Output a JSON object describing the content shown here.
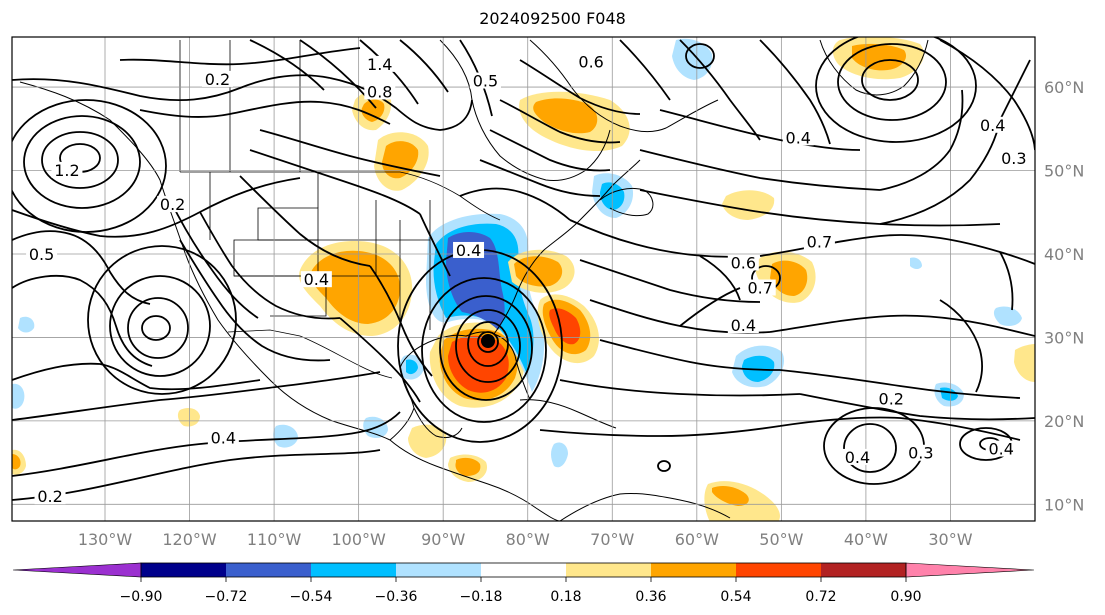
{
  "title": "2024092500 F048",
  "map": {
    "projection": "Cylindrical",
    "lon_range": [
      -141,
      -20
    ],
    "lat_range": [
      8,
      66
    ],
    "gridlines": true,
    "lon_ticks": [
      {
        "lon": -130,
        "label": "130°W"
      },
      {
        "lon": -120,
        "label": "120°W"
      },
      {
        "lon": -110,
        "label": "110°W"
      },
      {
        "lon": -100,
        "label": "100°W"
      },
      {
        "lon": -90,
        "label": "90°W"
      },
      {
        "lon": -80,
        "label": "80°W"
      },
      {
        "lon": -70,
        "label": "70°W"
      },
      {
        "lon": -60,
        "label": "60°W"
      },
      {
        "lon": -50,
        "label": "50°W"
      },
      {
        "lon": -40,
        "label": "40°W"
      },
      {
        "lon": -30,
        "label": "30°W"
      }
    ],
    "lat_ticks": [
      {
        "lat": 60,
        "label": "60°N"
      },
      {
        "lat": 50,
        "label": "50°N"
      },
      {
        "lat": 40,
        "label": "40°N"
      },
      {
        "lat": 30,
        "label": "30°N"
      },
      {
        "lat": 20,
        "label": "20°N"
      },
      {
        "lat": 10,
        "label": "10°N"
      }
    ],
    "contour_labels": [
      {
        "text": "0.2",
        "lon": -116.7,
        "lat": 60.5
      },
      {
        "text": "1.4",
        "lon": -97.5,
        "lat": 62.3
      },
      {
        "text": "1.2",
        "lon": -134.5,
        "lat": 49.6
      },
      {
        "text": "0.6",
        "lon": -72.5,
        "lat": 62.6
      },
      {
        "text": "0.5",
        "lon": -85,
        "lat": 60.3
      },
      {
        "text": "0.2",
        "lon": -122,
        "lat": 45.5
      },
      {
        "text": "0.5",
        "lon": -137.5,
        "lat": 39.5
      },
      {
        "text": "0.4",
        "lon": -105,
        "lat": 36.5
      },
      {
        "text": "0.7",
        "lon": -45.5,
        "lat": 41
      },
      {
        "text": "0.7",
        "lon": -52.5,
        "lat": 35.5
      },
      {
        "text": "0.6",
        "lon": -54.5,
        "lat": 38.5
      },
      {
        "text": "0.4",
        "lon": -48,
        "lat": 53.5
      },
      {
        "text": "0.3",
        "lon": -22.5,
        "lat": 51
      },
      {
        "text": "0.4",
        "lon": -25,
        "lat": 55
      },
      {
        "text": "0.4",
        "lon": -54.5,
        "lat": 31
      },
      {
        "text": "0.2",
        "lon": -37,
        "lat": 22.2
      },
      {
        "text": "0.4",
        "lon": -41,
        "lat": 15.2
      },
      {
        "text": "0.3",
        "lon": -33.5,
        "lat": 15.7
      },
      {
        "text": "0.4",
        "lon": -24,
        "lat": 16.2
      },
      {
        "text": "0.4",
        "lon": -116,
        "lat": 17.5
      },
      {
        "text": "0.2",
        "lon": -136.5,
        "lat": 10.5
      },
      {
        "text": "0.8",
        "lon": -97.5,
        "lat": 59
      },
      {
        "text": "0.4",
        "lon": -87,
        "lat": 40
      }
    ]
  },
  "shading_legend": {
    "tick_labels": [
      "−0.90",
      "−0.72",
      "−0.54",
      "−0.36",
      "−0.18",
      "0.18",
      "0.36",
      "0.54",
      "0.72",
      "0.90"
    ],
    "colors": [
      "#9b30d0",
      "#00008b",
      "#3a5fcd",
      "#00bfff",
      "#b0e2ff",
      "#ffffff",
      "#ffe78c",
      "#ffa500",
      "#ff4500",
      "#b22222",
      "#ff82ab"
    ]
  }
}
